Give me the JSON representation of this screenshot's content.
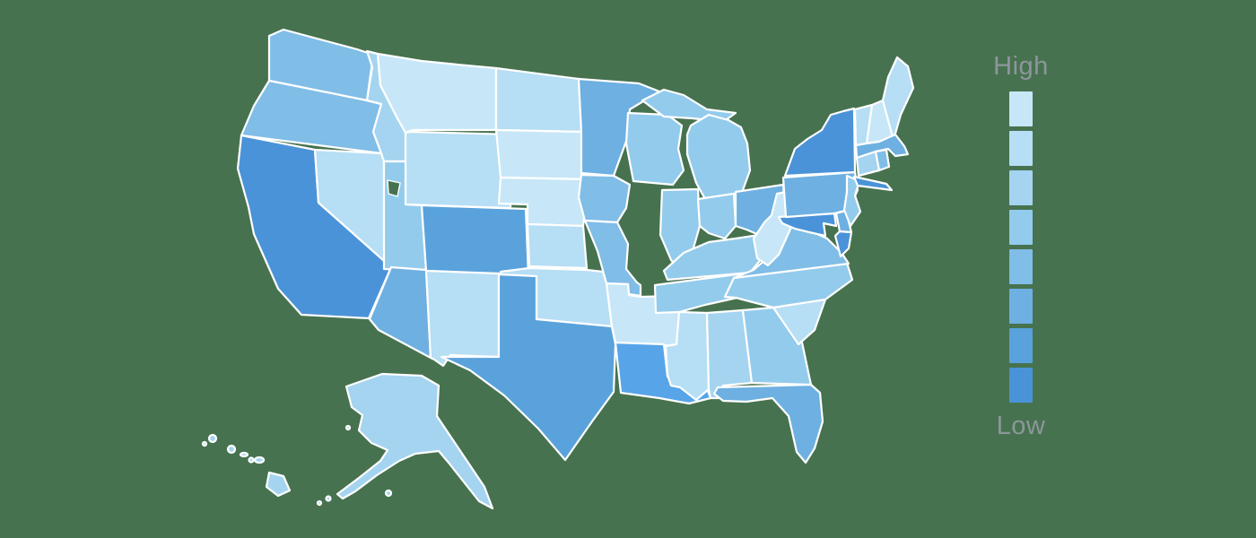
{
  "canvas": {
    "background_color": "#47724F",
    "state_border_color": "#ffffff",
    "legend_label_color": "#8d969c"
  },
  "legend": {
    "high_label": "High",
    "low_label": "Low"
  },
  "chart_data": {
    "type": "choropleth",
    "region": "United States",
    "legend_orientation": "lightest_shade_at_High_top, darkest_shade_at_Low_bottom",
    "palette": [
      "#c7e7f8",
      "#b6def4",
      "#a4d4f0",
      "#93cbec",
      "#80bde7",
      "#6db0e1",
      "#59a2dc",
      "#4b93d8"
    ],
    "states": [
      {
        "abbr": "AL",
        "name": "Alabama",
        "level": 3
      },
      {
        "abbr": "AK",
        "name": "Alaska",
        "level": 3
      },
      {
        "abbr": "AZ",
        "name": "Arizona",
        "level": 6
      },
      {
        "abbr": "AR",
        "name": "Arkansas",
        "level": 1
      },
      {
        "abbr": "CA",
        "name": "California",
        "level": 8
      },
      {
        "abbr": "CO",
        "name": "Colorado",
        "level": 7
      },
      {
        "abbr": "CT",
        "name": "Connecticut",
        "level": 3
      },
      {
        "abbr": "DE",
        "name": "Delaware",
        "level": 6
      },
      {
        "abbr": "FL",
        "name": "Florida",
        "level": 6
      },
      {
        "abbr": "GA",
        "name": "Georgia",
        "level": 4
      },
      {
        "abbr": "HI",
        "name": "Hawaii",
        "level": 3
      },
      {
        "abbr": "ID",
        "name": "Idaho",
        "level": 3
      },
      {
        "abbr": "IL",
        "name": "Illinois",
        "level": 4
      },
      {
        "abbr": "IN",
        "name": "Indiana",
        "level": 4
      },
      {
        "abbr": "IA",
        "name": "Iowa",
        "level": 5
      },
      {
        "abbr": "KS",
        "name": "Kansas",
        "level": 2
      },
      {
        "abbr": "KY",
        "name": "Kentucky",
        "level": 4
      },
      {
        "abbr": "LA",
        "name": "Louisiana",
        "level": 7,
        "color": "#57a4e8"
      },
      {
        "abbr": "ME",
        "name": "Maine",
        "level": 2
      },
      {
        "abbr": "MD",
        "name": "Maryland",
        "level": 8
      },
      {
        "abbr": "MA",
        "name": "Massachusetts",
        "level": 6
      },
      {
        "abbr": "MI",
        "name": "Michigan",
        "level": 4
      },
      {
        "abbr": "MN",
        "name": "Minnesota",
        "level": 6
      },
      {
        "abbr": "MS",
        "name": "Mississippi",
        "level": 2
      },
      {
        "abbr": "MO",
        "name": "Missouri",
        "level": 5
      },
      {
        "abbr": "MT",
        "name": "Montana",
        "level": 1
      },
      {
        "abbr": "NE",
        "name": "Nebraska",
        "level": 1
      },
      {
        "abbr": "NV",
        "name": "Nevada",
        "level": 2
      },
      {
        "abbr": "NH",
        "name": "New Hampshire",
        "level": 1
      },
      {
        "abbr": "NJ",
        "name": "New Jersey",
        "level": 4
      },
      {
        "abbr": "NM",
        "name": "New Mexico",
        "level": 2
      },
      {
        "abbr": "NY",
        "name": "New York",
        "level": 8
      },
      {
        "abbr": "NC",
        "name": "North Carolina",
        "level": 4
      },
      {
        "abbr": "ND",
        "name": "North Dakota",
        "level": 2
      },
      {
        "abbr": "OH",
        "name": "Ohio",
        "level": 6
      },
      {
        "abbr": "OK",
        "name": "Oklahoma",
        "level": 2
      },
      {
        "abbr": "OR",
        "name": "Oregon",
        "level": 5
      },
      {
        "abbr": "PA",
        "name": "Pennsylvania",
        "level": 6
      },
      {
        "abbr": "RI",
        "name": "Rhode Island",
        "level": 5
      },
      {
        "abbr": "SC",
        "name": "South Carolina",
        "level": 2
      },
      {
        "abbr": "SD",
        "name": "South Dakota",
        "level": 1
      },
      {
        "abbr": "TN",
        "name": "Tennessee",
        "level": 4
      },
      {
        "abbr": "TX",
        "name": "Texas",
        "level": 7
      },
      {
        "abbr": "UT",
        "name": "Utah",
        "level": 4
      },
      {
        "abbr": "VT",
        "name": "Vermont",
        "level": 2
      },
      {
        "abbr": "VA",
        "name": "Virginia",
        "level": 5
      },
      {
        "abbr": "WA",
        "name": "Washington",
        "level": 5
      },
      {
        "abbr": "WV",
        "name": "West Virginia",
        "level": 1
      },
      {
        "abbr": "WI",
        "name": "Wisconsin",
        "level": 4
      },
      {
        "abbr": "WY",
        "name": "Wyoming",
        "level": 2
      }
    ]
  }
}
